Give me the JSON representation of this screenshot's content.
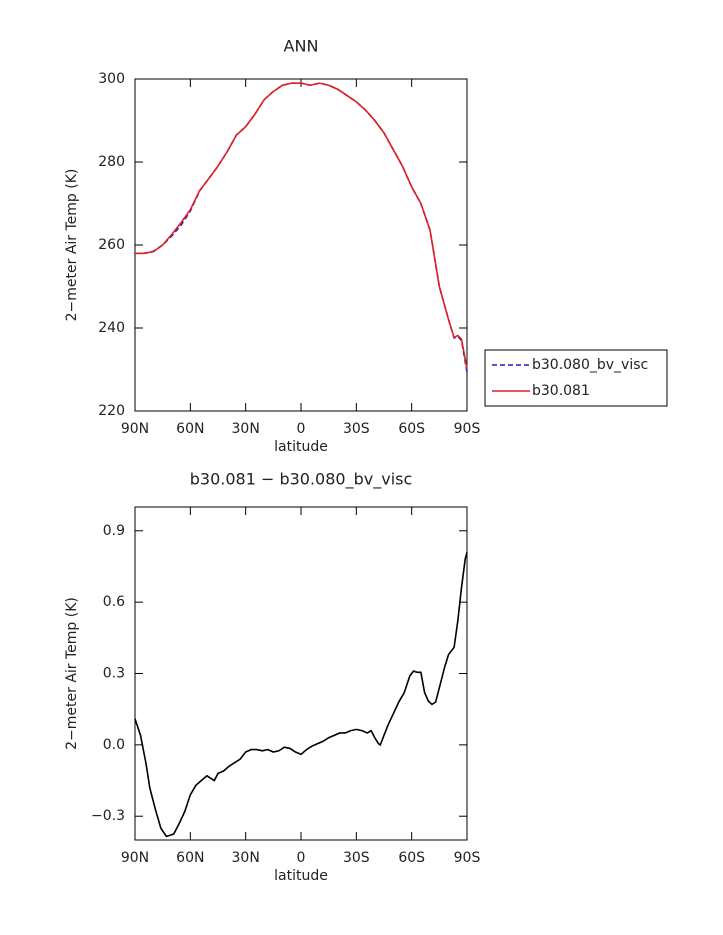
{
  "chart_data": [
    {
      "type": "line",
      "title": "ANN",
      "xlabel": "latitude",
      "ylabel": "2−meter Air Temp (K)",
      "x": [
        90,
        85,
        80,
        75,
        70,
        65,
        60,
        55,
        50,
        45,
        40,
        35,
        30,
        25,
        20,
        15,
        10,
        5,
        0,
        -5,
        -10,
        -15,
        -20,
        -25,
        -30,
        -35,
        -40,
        -45,
        -50,
        -55,
        -60,
        -65,
        -70,
        -75,
        -80,
        -83,
        -85,
        -87,
        -90
      ],
      "series": [
        {
          "name": "b30.080_bv_visc",
          "color": "#2020c0",
          "style": "dashed",
          "values": [
            258,
            258,
            258.5,
            260,
            262.2,
            264.8,
            268.2,
            273,
            276,
            279,
            282.5,
            286.5,
            288.5,
            291.5,
            295,
            297,
            298.5,
            299,
            299,
            298.5,
            299,
            298.5,
            297.5,
            296,
            294.5,
            292.5,
            290,
            287,
            283,
            279,
            274,
            270,
            263.5,
            250,
            242,
            237.6,
            238,
            237,
            229.4
          ]
        },
        {
          "name": "b30.081",
          "color": "#e02020",
          "style": "solid",
          "values": [
            258,
            258,
            258.4,
            260,
            262.6,
            265.4,
            268.5,
            273.1,
            276,
            279,
            282.5,
            286.5,
            288.5,
            291.5,
            295,
            297,
            298.5,
            299,
            299,
            298.5,
            299,
            298.5,
            297.5,
            296,
            294.5,
            292.5,
            290,
            287,
            283,
            279,
            274,
            270,
            263.5,
            250,
            242,
            237.7,
            238.2,
            237.3,
            230.2
          ]
        }
      ],
      "xlim": [
        90,
        -90
      ],
      "xticks": [
        {
          "value": 90,
          "label": "90N"
        },
        {
          "value": 60,
          "label": "60N"
        },
        {
          "value": 30,
          "label": "30N"
        },
        0,
        {
          "value": -30,
          "label": "30S"
        },
        {
          "value": -60,
          "label": "60S"
        },
        {
          "value": -90,
          "label": "90S"
        }
      ],
      "ylim": [
        220,
        300
      ],
      "yticks": [
        220,
        240,
        260,
        280,
        300
      ],
      "legend": "right"
    },
    {
      "type": "line",
      "title": "b30.081 − b30.080_bv_visc",
      "xlabel": "latitude",
      "ylabel": "2−meter Air Temp (K)",
      "x": [
        90,
        87,
        84,
        82,
        79,
        76,
        73,
        71,
        69,
        66,
        63,
        60,
        57,
        54,
        51,
        49,
        47,
        45,
        42,
        39,
        36,
        33,
        30,
        27,
        24,
        21,
        18,
        15,
        12,
        9,
        6,
        3,
        0,
        -3,
        -6,
        -9,
        -12,
        -15,
        -18,
        -21,
        -24,
        -27,
        -30,
        -33,
        -36,
        -38,
        -40,
        -42,
        -43,
        -45,
        -47,
        -50,
        -53,
        -56,
        -59,
        -61,
        -63,
        -65,
        -67,
        -69,
        -71,
        -73,
        -75,
        -78,
        -80,
        -83,
        -85,
        -87,
        -89,
        -90
      ],
      "series": [
        {
          "color": "#000000",
          "style": "solid",
          "values": [
            0.11,
            0.04,
            -0.08,
            -0.18,
            -0.27,
            -0.35,
            -0.385,
            -0.38,
            -0.375,
            -0.33,
            -0.28,
            -0.21,
            -0.17,
            -0.15,
            -0.13,
            -0.14,
            -0.15,
            -0.12,
            -0.11,
            -0.09,
            -0.075,
            -0.06,
            -0.03,
            -0.02,
            -0.02,
            -0.025,
            -0.02,
            -0.03,
            -0.025,
            -0.01,
            -0.015,
            -0.03,
            -0.04,
            -0.02,
            -0.005,
            0.005,
            0.015,
            0.03,
            0.04,
            0.05,
            0.05,
            0.06,
            0.065,
            0.06,
            0.05,
            0.06,
            0.03,
            0.005,
            0.0,
            0.04,
            0.08,
            0.13,
            0.18,
            0.22,
            0.29,
            0.31,
            0.305,
            0.305,
            0.22,
            0.185,
            0.17,
            0.18,
            0.24,
            0.33,
            0.38,
            0.41,
            0.52,
            0.66,
            0.78,
            0.81
          ]
        }
      ],
      "xlim": [
        90,
        -90
      ],
      "xticks": [
        {
          "value": 90,
          "label": "90N"
        },
        {
          "value": 60,
          "label": "60N"
        },
        {
          "value": 30,
          "label": "30N"
        },
        0,
        {
          "value": -30,
          "label": "30S"
        },
        {
          "value": -60,
          "label": "60S"
        },
        {
          "value": -90,
          "label": "90S"
        }
      ],
      "ylim": [
        -0.4,
        1.0
      ],
      "yticks": [
        {
          "value": -0.3,
          "label": "−0.3"
        },
        {
          "value": 0,
          "label": "0.0"
        },
        0.3,
        0.6,
        0.9
      ]
    }
  ]
}
